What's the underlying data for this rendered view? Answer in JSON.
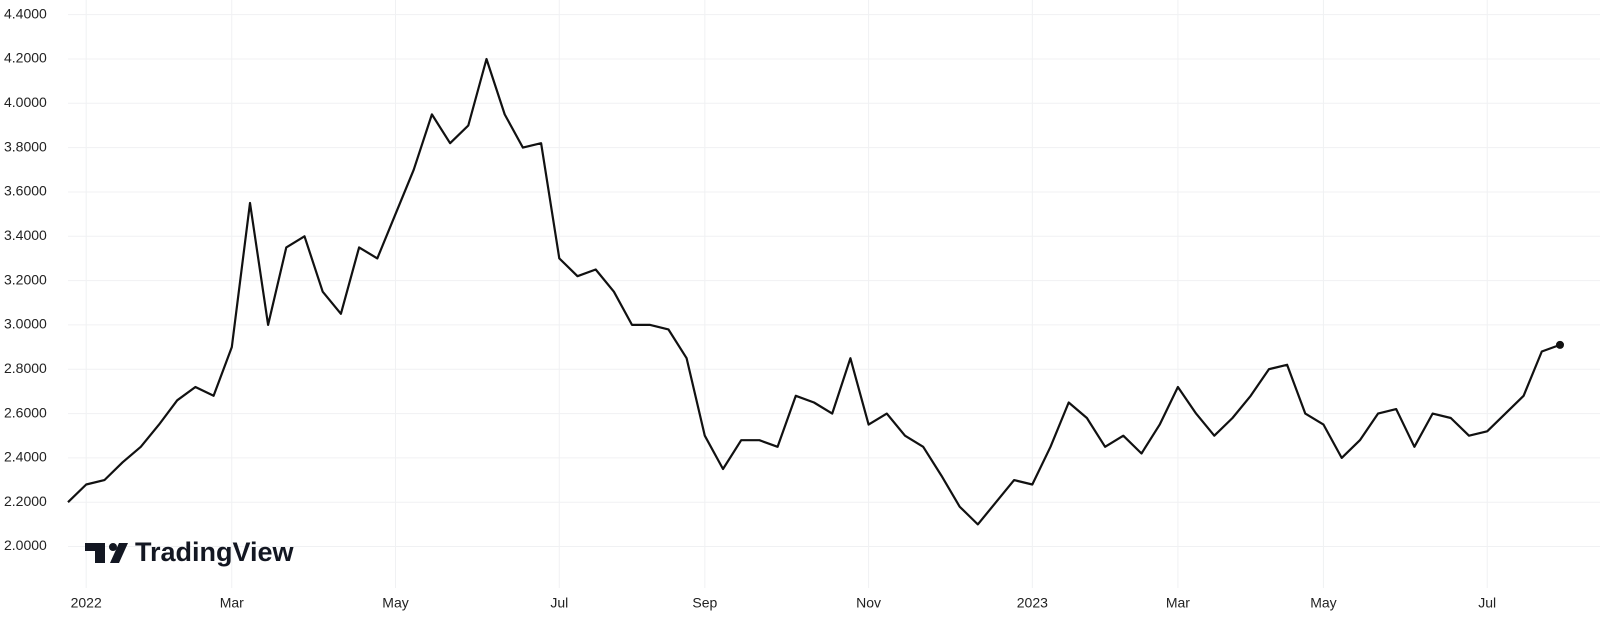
{
  "chart_data": {
    "type": "line",
    "watermark": "TradingView",
    "categories": [
      null,
      "2022",
      null,
      null,
      null,
      null,
      null,
      null,
      null,
      "Mar",
      null,
      null,
      null,
      null,
      null,
      null,
      null,
      null,
      "May",
      null,
      null,
      null,
      null,
      null,
      null,
      null,
      null,
      "Jul",
      null,
      null,
      null,
      null,
      null,
      null,
      null,
      "Sep",
      null,
      null,
      null,
      null,
      null,
      null,
      null,
      null,
      "Nov",
      null,
      null,
      null,
      null,
      null,
      null,
      null,
      null,
      "2023",
      null,
      null,
      null,
      null,
      null,
      null,
      null,
      "Mar",
      null,
      null,
      null,
      null,
      null,
      null,
      null,
      "May",
      null,
      null,
      null,
      null,
      null,
      null,
      null,
      null,
      "Jul",
      null,
      null,
      null,
      null
    ],
    "values": [
      2.2,
      2.28,
      2.3,
      2.38,
      2.45,
      2.55,
      2.66,
      2.72,
      2.68,
      2.9,
      3.55,
      3.0,
      3.35,
      3.4,
      3.15,
      3.05,
      3.35,
      3.3,
      3.5,
      3.7,
      3.95,
      3.82,
      3.9,
      4.2,
      3.95,
      3.8,
      3.82,
      3.3,
      3.22,
      3.25,
      3.15,
      3.0,
      3.0,
      2.98,
      2.85,
      2.5,
      2.35,
      2.48,
      2.48,
      2.45,
      2.68,
      2.65,
      2.6,
      2.85,
      2.55,
      2.6,
      2.5,
      2.45,
      2.32,
      2.18,
      2.1,
      2.2,
      2.3,
      2.28,
      2.45,
      2.65,
      2.58,
      2.45,
      2.5,
      2.42,
      2.55,
      2.72,
      2.6,
      2.5,
      2.58,
      2.68,
      2.8,
      2.82,
      2.6,
      2.55,
      2.4,
      2.48,
      2.6,
      2.62,
      2.45,
      2.6,
      2.58,
      2.5,
      2.52,
      2.6,
      2.68,
      2.88,
      2.91
    ],
    "color": "#111111",
    "ylim": [
      1.84,
      4.43
    ],
    "yticks": [
      {
        "value": 2.0,
        "label": "2.0000"
      },
      {
        "value": 2.2,
        "label": "2.2000"
      },
      {
        "value": 2.4,
        "label": "2.4000"
      },
      {
        "value": 2.6,
        "label": "2.6000"
      },
      {
        "value": 2.8,
        "label": "2.8000"
      },
      {
        "value": 3.0,
        "label": "3.0000"
      },
      {
        "value": 3.2,
        "label": "3.2000"
      },
      {
        "value": 3.4,
        "label": "3.4000"
      },
      {
        "value": 3.6,
        "label": "3.6000"
      },
      {
        "value": 3.8,
        "label": "3.8000"
      },
      {
        "value": 4.0,
        "label": "4.0000"
      },
      {
        "value": 4.2,
        "label": "4.2000"
      },
      {
        "value": 4.4,
        "label": "4.4000"
      }
    ],
    "grid": true
  }
}
